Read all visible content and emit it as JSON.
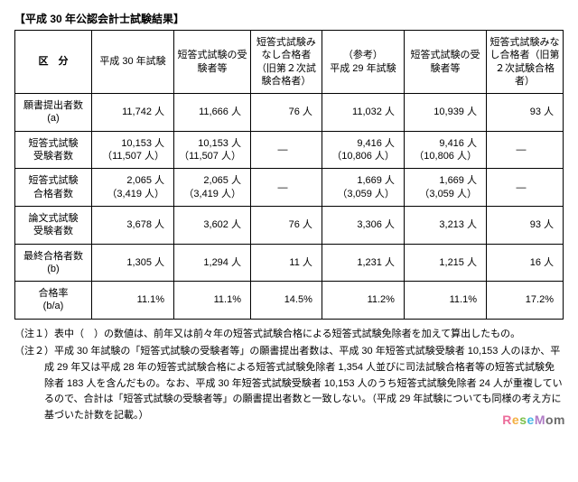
{
  "title": "【平成 30 年公認会計士試験結果】",
  "header": {
    "c0": "区　分",
    "c1": "平成 30 年試験",
    "c2": "短答式試験の受験者等",
    "c3": "短答式試験みなし合格者（旧第２次試験合格者）",
    "c4": "（参考）\n平成 29 年試験",
    "c5": "短答式試験の受験者等",
    "c6": "短答式試験みなし合格者（旧第２次試験合格者）"
  },
  "rows": [
    {
      "label": "願書提出者数\n(a)",
      "v1": "11,742 人",
      "v2": "11,666 人",
      "v3": "76 人",
      "v4": "11,032 人",
      "v5": "10,939 人",
      "v6": "93 人"
    },
    {
      "label": "短答式試験\n受験者数",
      "v1": "10,153 人\n（11,507 人）",
      "v2": "10,153 人\n（11,507 人）",
      "v3": "—",
      "v4": "9,416 人\n（10,806 人）",
      "v5": "9,416 人\n（10,806 人）",
      "v6": "—"
    },
    {
      "label": "短答式試験\n合格者数",
      "v1": "2,065 人\n（3,419 人）",
      "v2": "2,065 人\n（3,419 人）",
      "v3": "—",
      "v4": "1,669 人\n（3,059 人）",
      "v5": "1,669 人\n（3,059 人）",
      "v6": "—"
    },
    {
      "label": "論文式試験\n受験者数",
      "v1": "3,678 人",
      "v2": "3,602 人",
      "v3": "76 人",
      "v4": "3,306 人",
      "v5": "3,213 人",
      "v6": "93 人"
    },
    {
      "label": "最終合格者数\n(b)",
      "v1": "1,305 人",
      "v2": "1,294 人",
      "v3": "11 人",
      "v4": "1,231 人",
      "v5": "1,215 人",
      "v6": "16 人"
    },
    {
      "label": "合格率\n(b/a)",
      "v1": "11.1%",
      "v2": "11.1%",
      "v3": "14.5%",
      "v4": "11.2%",
      "v5": "11.1%",
      "v6": "17.2%"
    }
  ],
  "notes": {
    "n1": "（注１）表中（　）の数値は、前年又は前々年の短答式試験合格による短答式試験免除者を加えて算出したもの。",
    "n2": "（注２）平成 30 年試験の「短答式試験の受験者等」の願書提出者数は、平成 30 年短答式試験受験者 10,153 人のほか、平成 29 年又は平成 28 年の短答式試験合格による短答式試験免除者 1,354 人並びに司法試験合格者等の短答式試験免除者 183 人を含んだもの。なお、平成 30 年短答式試験受験者 10,153 人のうち短答式試験免除者 24 人が重複しているので、合計は「短答式試験の受験者等」の願書提出者数と一致しない。（平成 29 年試験についても同様の考え方に基づいた計数を記載。）"
  }
}
